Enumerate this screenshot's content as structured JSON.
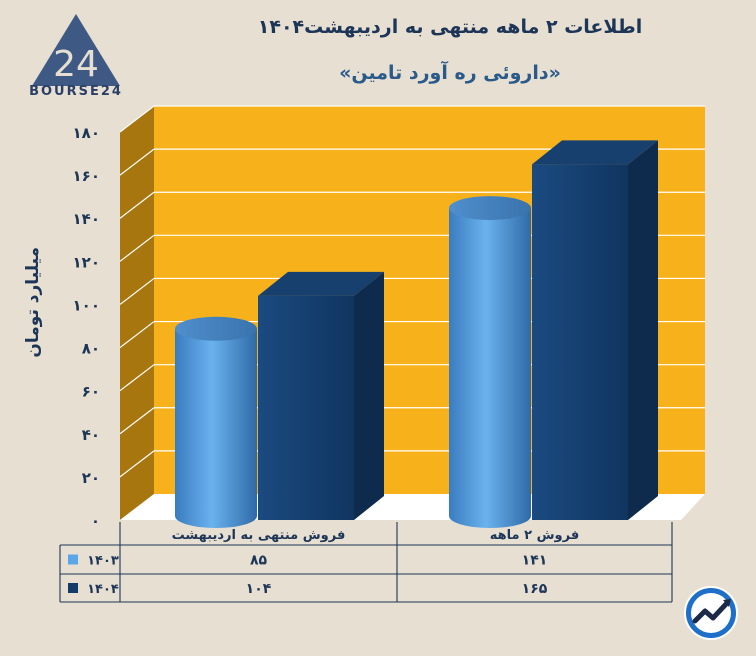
{
  "header": {
    "title": "اطلاعات ۲ ماهه منتهی به اردیبهشت۱۴۰۴",
    "subtitle": "«داروئی ره آورد تامین»"
  },
  "logo": {
    "text": "BOURSE24",
    "mark": "24"
  },
  "icons": {
    "badge": "trend-chart-icon"
  },
  "colors": {
    "background": "#e6dfd2",
    "plot_back": "#f7b21b",
    "plot_side": "#a8760f",
    "series_1403": "#5aa6e8",
    "series_1404": "#143b69",
    "text": "#1d3557"
  },
  "chart_data": {
    "type": "bar",
    "ylabel": "میلیارد تومان",
    "ylim": [
      0,
      180
    ],
    "yticks": [
      "۰",
      "۲۰",
      "۴۰",
      "۶۰",
      "۸۰",
      "۱۰۰",
      "۱۲۰",
      "۱۴۰",
      "۱۶۰",
      "۱۸۰"
    ],
    "categories": [
      "فروش منتهی به  اردیبهشت",
      "فروش ۲  ماهه"
    ],
    "series": [
      {
        "name": "۱۴۰۳",
        "values": [
          85,
          141
        ],
        "labels": [
          "۸۵",
          "۱۴۱"
        ],
        "shape": "cylinder"
      },
      {
        "name": "۱۴۰۴",
        "values": [
          104,
          165
        ],
        "labels": [
          "۱۰۴",
          "۱۶۵"
        ],
        "shape": "box"
      }
    ],
    "grid": true,
    "legend": "table-left"
  }
}
